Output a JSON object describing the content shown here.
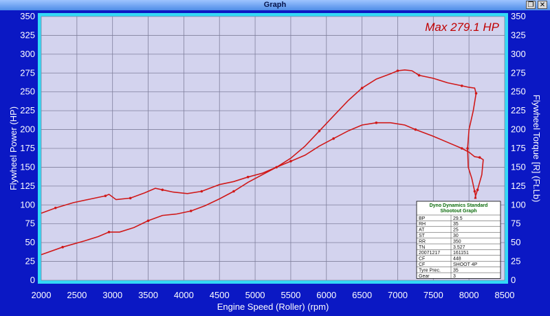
{
  "window": {
    "title": "Graph",
    "restore_glyph": "❐",
    "close_glyph": "✕"
  },
  "chart_data": {
    "type": "line",
    "xlabel": "Engine Speed (Roller) (rpm)",
    "ylabel_left": "Flywheel Power (HP)",
    "ylabel_right": "Flywheel Torque [R] (Ft.Lb)",
    "xlim": [
      2000,
      8500
    ],
    "ylim": [
      0,
      350
    ],
    "x_ticks": [
      2000,
      2500,
      3000,
      3500,
      4000,
      4500,
      5000,
      5500,
      6000,
      6500,
      7000,
      7500,
      8000,
      8500
    ],
    "y_ticks": [
      0,
      25,
      50,
      75,
      100,
      125,
      150,
      175,
      200,
      225,
      250,
      275,
      300,
      325,
      350
    ],
    "grid": true,
    "annotation": "Max 279.1 HP",
    "colors": {
      "plot_bg": "#d3d3ee",
      "border": "#34d9f6",
      "line": "#d01818",
      "grid": "#7f7f9c",
      "page_bg": "#0b18c4"
    },
    "series": [
      {
        "values": [
          [
            2000,
            34
          ],
          [
            2300,
            44
          ],
          [
            2600,
            52
          ],
          [
            2800,
            58
          ],
          [
            2950,
            64
          ],
          [
            3100,
            64
          ],
          [
            3300,
            70
          ],
          [
            3500,
            79
          ],
          [
            3700,
            86
          ],
          [
            3900,
            88
          ],
          [
            4100,
            92
          ],
          [
            4300,
            99
          ],
          [
            4500,
            108
          ],
          [
            4700,
            118
          ],
          [
            4900,
            130
          ],
          [
            5100,
            140
          ],
          [
            5300,
            150
          ],
          [
            5500,
            162
          ],
          [
            5700,
            178
          ],
          [
            5900,
            198
          ],
          [
            6100,
            218
          ],
          [
            6300,
            238
          ],
          [
            6500,
            255
          ],
          [
            6700,
            267
          ],
          [
            6900,
            274
          ],
          [
            7000,
            278
          ],
          [
            7100,
            279.1
          ],
          [
            7200,
            278
          ],
          [
            7300,
            272
          ],
          [
            7500,
            268
          ],
          [
            7700,
            262
          ],
          [
            7900,
            258
          ],
          [
            8000,
            256
          ],
          [
            8080,
            255
          ],
          [
            8100,
            248
          ],
          [
            8060,
            225
          ],
          [
            8000,
            200
          ],
          [
            7980,
            175
          ],
          [
            7990,
            150
          ],
          [
            8040,
            135
          ],
          [
            8080,
            118
          ],
          [
            8100,
            108
          ]
        ]
      },
      {
        "values": [
          [
            2000,
            89
          ],
          [
            2200,
            96
          ],
          [
            2450,
            103
          ],
          [
            2700,
            108
          ],
          [
            2900,
            112
          ],
          [
            2950,
            114
          ],
          [
            3050,
            107
          ],
          [
            3250,
            109
          ],
          [
            3450,
            116
          ],
          [
            3600,
            122
          ],
          [
            3700,
            120
          ],
          [
            3850,
            117
          ],
          [
            4050,
            115
          ],
          [
            4250,
            118
          ],
          [
            4500,
            127
          ],
          [
            4700,
            131
          ],
          [
            4900,
            137
          ],
          [
            5100,
            142
          ],
          [
            5300,
            150
          ],
          [
            5500,
            158
          ],
          [
            5700,
            166
          ],
          [
            5900,
            178
          ],
          [
            6100,
            188
          ],
          [
            6300,
            198
          ],
          [
            6500,
            206
          ],
          [
            6700,
            209
          ],
          [
            6900,
            209
          ],
          [
            7100,
            206
          ],
          [
            7250,
            200
          ],
          [
            7500,
            191
          ],
          [
            7700,
            183
          ],
          [
            7900,
            175
          ],
          [
            8000,
            170
          ],
          [
            8080,
            164
          ],
          [
            8150,
            163
          ],
          [
            8200,
            160
          ],
          [
            8180,
            140
          ],
          [
            8120,
            120
          ],
          [
            8080,
            108
          ]
        ]
      }
    ],
    "table": {
      "header": [
        "Dyno Dynamics Standard",
        "Shootout Graph"
      ],
      "rows": [
        [
          "BP",
          "29.5"
        ],
        [
          "RH",
          "35"
        ],
        [
          "AT",
          "25"
        ],
        [
          "ST",
          "30"
        ],
        [
          "RR",
          "350"
        ],
        [
          "TN",
          "3.527"
        ],
        [
          "20071217",
          "161151"
        ],
        [
          "CF",
          "448"
        ],
        [
          "CF",
          "SHOOT 4P"
        ],
        [
          "Tyre Prec.",
          "35"
        ],
        [
          "Gear",
          "3"
        ]
      ]
    }
  }
}
